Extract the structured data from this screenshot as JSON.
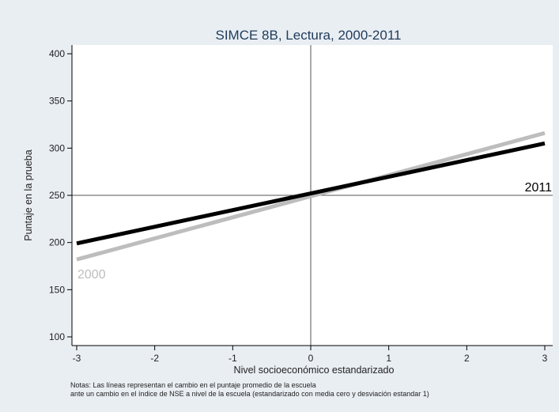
{
  "chart_data": {
    "type": "line",
    "title": "SIMCE 8B, Lectura, 2000-2011",
    "xlabel": "Nivel socioeconómico estandarizado",
    "ylabel": "Puntaje en la prueba",
    "xlim": [
      -3,
      3
    ],
    "ylim": [
      100,
      400
    ],
    "x_ticks": [
      "-3",
      "-2",
      "-1",
      "0",
      "1",
      "2",
      "3"
    ],
    "y_ticks": [
      "100",
      "150",
      "200",
      "250",
      "300",
      "350",
      "400"
    ],
    "grid": false,
    "reference_lines": {
      "x": 0,
      "y": 250
    },
    "series": [
      {
        "name": "2000",
        "color": "#bdbdbd",
        "x": [
          -3,
          3
        ],
        "y": [
          182,
          316
        ]
      },
      {
        "name": "2011",
        "color": "#000000",
        "x": [
          -3,
          3
        ],
        "y": [
          199,
          305
        ]
      }
    ],
    "notes": [
      "Notas: Las líneas representan el cambio en el puntaje promedio de la escuela",
      "ante un cambio en el índice de NSE a nivel de la escuela (estandarizado con media cero y desviación estandar 1)"
    ]
  }
}
